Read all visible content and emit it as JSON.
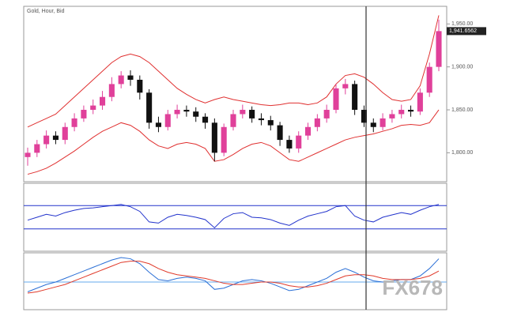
{
  "title": "Gold, Hour, Bid",
  "watermark": "FX678",
  "chart_data": [
    {
      "type": "candlestick",
      "open": [
        1795,
        1800,
        1810,
        1820,
        1815,
        1830,
        1840,
        1850,
        1855,
        1865,
        1880,
        1890,
        1885,
        1870,
        1835,
        1830,
        1845,
        1850,
        1848,
        1842,
        1835,
        1800,
        1830,
        1845,
        1850,
        1840,
        1838,
        1832,
        1815,
        1805,
        1820,
        1830,
        1840,
        1850,
        1875,
        1880,
        1850,
        1835,
        1830,
        1840,
        1845,
        1850,
        1848,
        1870,
        1900
      ],
      "high": [
        1806,
        1815,
        1826,
        1825,
        1835,
        1846,
        1855,
        1862,
        1872,
        1888,
        1895,
        1896,
        1890,
        1874,
        1842,
        1850,
        1856,
        1855,
        1853,
        1846,
        1840,
        1834,
        1850,
        1856,
        1854,
        1846,
        1843,
        1836,
        1820,
        1825,
        1835,
        1845,
        1856,
        1880,
        1886,
        1884,
        1855,
        1840,
        1846,
        1850,
        1856,
        1855,
        1875,
        1905,
        1955
      ],
      "low": [
        1785,
        1795,
        1805,
        1810,
        1810,
        1825,
        1836,
        1845,
        1850,
        1860,
        1875,
        1878,
        1862,
        1828,
        1824,
        1826,
        1840,
        1842,
        1836,
        1828,
        1790,
        1796,
        1826,
        1840,
        1835,
        1832,
        1826,
        1808,
        1800,
        1800,
        1815,
        1825,
        1835,
        1846,
        1868,
        1844,
        1830,
        1824,
        1826,
        1835,
        1840,
        1842,
        1844,
        1865,
        1895
      ],
      "close": [
        1800,
        1810,
        1820,
        1815,
        1830,
        1840,
        1850,
        1855,
        1865,
        1880,
        1890,
        1885,
        1870,
        1835,
        1830,
        1845,
        1850,
        1848,
        1842,
        1835,
        1800,
        1830,
        1845,
        1850,
        1840,
        1838,
        1832,
        1815,
        1805,
        1820,
        1830,
        1840,
        1850,
        1875,
        1880,
        1850,
        1835,
        1830,
        1840,
        1845,
        1850,
        1848,
        1870,
        1900,
        1941.6562
      ],
      "up_color": "#e0409a",
      "down_color": "#111111",
      "series": [
        {
          "color": "#e03030",
          "values": [
            1830,
            1835,
            1840,
            1845,
            1855,
            1865,
            1875,
            1885,
            1895,
            1905,
            1912,
            1915,
            1912,
            1905,
            1895,
            1885,
            1875,
            1868,
            1862,
            1858,
            1862,
            1865,
            1862,
            1860,
            1858,
            1856,
            1855,
            1856,
            1858,
            1858,
            1856,
            1858,
            1865,
            1880,
            1890,
            1892,
            1888,
            1880,
            1870,
            1862,
            1860,
            1862,
            1878,
            1915,
            1960
          ]
        },
        {
          "color": "#e03030",
          "values": [
            1775,
            1778,
            1782,
            1788,
            1795,
            1802,
            1810,
            1818,
            1825,
            1830,
            1835,
            1832,
            1825,
            1815,
            1808,
            1805,
            1810,
            1812,
            1810,
            1805,
            1790,
            1792,
            1798,
            1805,
            1810,
            1812,
            1808,
            1800,
            1792,
            1790,
            1795,
            1800,
            1805,
            1810,
            1815,
            1818,
            1820,
            1822,
            1825,
            1828,
            1832,
            1833,
            1832,
            1835,
            1850
          ]
        }
      ],
      "last_price": {
        "value": 1941.6562,
        "label": "1,941.6562"
      },
      "ylim": [
        1770,
        1965
      ],
      "yticks": [
        {
          "value": 1800,
          "label": "1,800.00"
        },
        {
          "value": 1850,
          "label": "1,850.00"
        },
        {
          "value": 1900,
          "label": "1,900.00"
        },
        {
          "value": 1950,
          "label": "1,950.00"
        }
      ]
    },
    {
      "type": "line",
      "series": [
        {
          "color": "#2233cc",
          "values": [
            45,
            50,
            55,
            52,
            58,
            62,
            65,
            66,
            68,
            70,
            72,
            68,
            60,
            42,
            40,
            50,
            55,
            53,
            50,
            46,
            32,
            48,
            56,
            58,
            50,
            49,
            46,
            40,
            36,
            45,
            52,
            56,
            60,
            68,
            70,
            52,
            45,
            42,
            50,
            54,
            58,
            55,
            62,
            68,
            72
          ]
        }
      ],
      "levels": [
        70,
        30
      ],
      "level_color": "#2233cc",
      "ylim": [
        0,
        100
      ]
    },
    {
      "type": "line",
      "series": [
        {
          "color": "#2a6fd6",
          "values": [
            -8,
            -5,
            -2,
            0,
            3,
            6,
            9,
            12,
            15,
            18,
            20,
            19,
            15,
            8,
            2,
            1,
            3,
            4,
            3,
            1,
            -6,
            -5,
            -2,
            1,
            2,
            1,
            -1,
            -4,
            -7,
            -6,
            -3,
            0,
            3,
            8,
            11,
            8,
            4,
            1,
            0,
            1,
            2,
            2,
            5,
            11,
            19
          ]
        },
        {
          "color": "#e03a2a",
          "values": [
            -9,
            -8,
            -6,
            -4,
            -2,
            1,
            4,
            7,
            10,
            13,
            16,
            17,
            17,
            15,
            11,
            8,
            6,
            5,
            4,
            3,
            1,
            -1,
            -2,
            -2,
            -1,
            0,
            0,
            -1,
            -3,
            -4,
            -4,
            -3,
            -1,
            2,
            5,
            6,
            6,
            5,
            3,
            2,
            2,
            2,
            3,
            5,
            9
          ]
        }
      ],
      "levels": [
        0
      ],
      "level_color": "#66aaee",
      "ylim": [
        -20,
        20
      ]
    }
  ]
}
